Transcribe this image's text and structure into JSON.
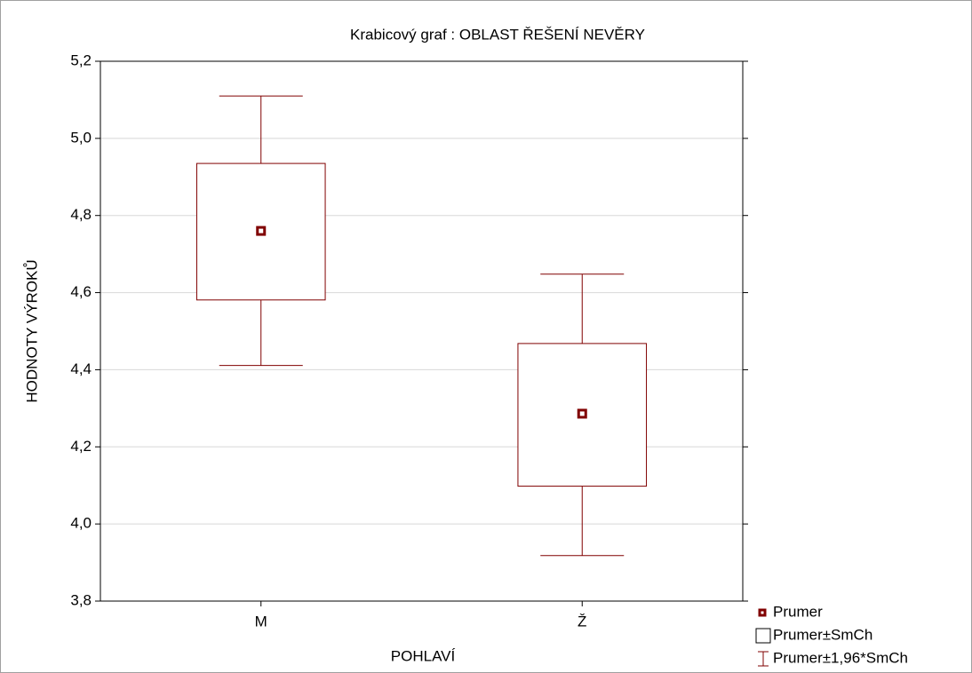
{
  "chart_data": {
    "type": "box",
    "title": "Krabicový  graf :   OBLAST ŘEŠENÍ NEVĚRY",
    "x_label": "POHLAVÍ",
    "y_label": "HODNOTY VÝROKŮ",
    "categories": [
      "M",
      "Ž"
    ],
    "mean": [
      4.76,
      4.286
    ],
    "box_low": [
      4.581,
      4.098
    ],
    "box_high": [
      4.935,
      4.468
    ],
    "whisker_low": [
      4.411,
      3.918
    ],
    "whisker_high": [
      5.11,
      4.648
    ],
    "color": "#800000",
    "ylim": [
      3.8,
      5.2
    ],
    "yticks": [
      {
        "value": 3.8,
        "label": "3,8"
      },
      {
        "value": 4.0,
        "label": "4,0"
      },
      {
        "value": 4.2,
        "label": "4,2"
      },
      {
        "value": 4.4,
        "label": "4,4"
      },
      {
        "value": 4.6,
        "label": "4,6"
      },
      {
        "value": 4.8,
        "label": "4,8"
      },
      {
        "value": 5.0,
        "label": "5,0"
      },
      {
        "value": 5.2,
        "label": "5,2"
      }
    ],
    "grid": true,
    "legend": [
      "Prumer",
      "Prumer±SmCh",
      "Prumer±1,96*SmCh"
    ],
    "legend_position": "bottom-right"
  }
}
